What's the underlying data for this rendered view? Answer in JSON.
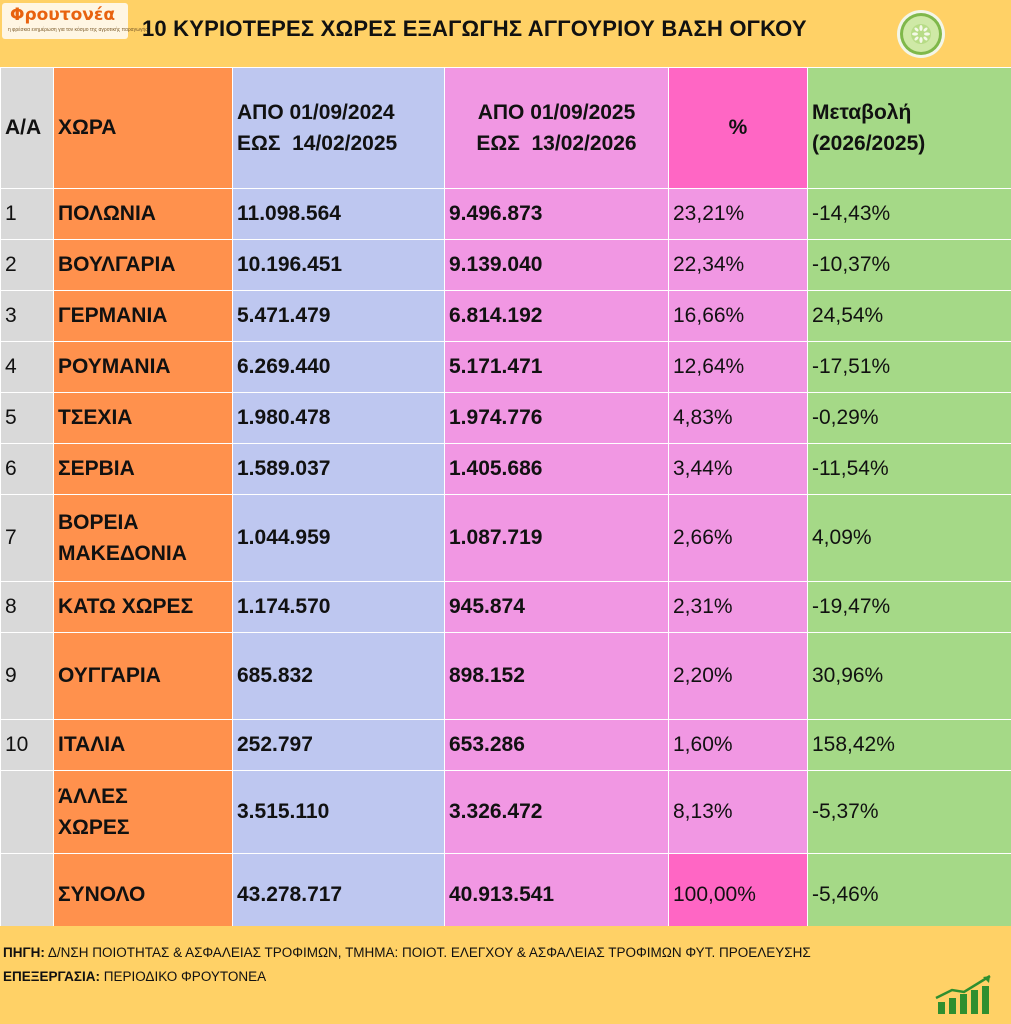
{
  "brand": {
    "name": "Φρουτονέα",
    "tagline": "η φρέσκια ενημέρωση για τον κόσμο της αγροτικής παραγωγής"
  },
  "title": "10 ΚΥΡΙΟΤΕΡΕΣ ΧΩΡΕΣ ΕΞΑΓΩΓΗΣ ΑΓΓΟΥΡΙΟΥ ΒΑΣΗ ΟΓΚΟΥ",
  "table": {
    "headers": {
      "aa": "Α/Α",
      "country": "ΧΩΡΑ",
      "p1_line1": "ΑΠΟ 01/09/2024",
      "p1_line2": "ΕΩΣ  14/02/2025",
      "p2_line1": "ΑΠΟ 01/09/2025",
      "p2_line2": "ΕΩΣ  13/02/2026",
      "pct": "%",
      "change_line1": "Μεταβολή",
      "change_line2": "(2026/2025)"
    },
    "rows": [
      {
        "aa": "1",
        "country": "ΠΟΛΩΝΙΑ",
        "country2": "",
        "p1": "11.098.564",
        "p2": "9.496.873",
        "pct": "23,21%",
        "change": "-14,43%"
      },
      {
        "aa": "2",
        "country": "ΒΟΥΛΓΑΡΙΑ",
        "country2": "",
        "p1": "10.196.451",
        "p2": "9.139.040",
        "pct": "22,34%",
        "change": "-10,37%"
      },
      {
        "aa": "3",
        "country": "ΓΕΡΜΑΝΙΑ",
        "country2": "",
        "p1": "5.471.479",
        "p2": "6.814.192",
        "pct": "16,66%",
        "change": "24,54%"
      },
      {
        "aa": "4",
        "country": "ΡΟΥΜΑΝΙΑ",
        "country2": "",
        "p1": "6.269.440",
        "p2": "5.171.471",
        "pct": "12,64%",
        "change": "-17,51%"
      },
      {
        "aa": "5",
        "country": "ΤΣΕΧΙΑ",
        "country2": "",
        "p1": "1.980.478",
        "p2": "1.974.776",
        "pct": "4,83%",
        "change": "-0,29%"
      },
      {
        "aa": "6",
        "country": "ΣΕΡΒΙΑ",
        "country2": "",
        "p1": "1.589.037",
        "p2": "1.405.686",
        "pct": "3,44%",
        "change": "-11,54%"
      },
      {
        "aa": "7",
        "country": "ΒΟΡΕΙΑ",
        "country2": "ΜΑΚΕΔΟΝΙΑ",
        "p1": "1.044.959",
        "p2": "1.087.719",
        "pct": "2,66%",
        "change": "4,09%"
      },
      {
        "aa": "8",
        "country": "ΚΑΤΩ ΧΩΡΕΣ",
        "country2": "",
        "p1": "1.174.570",
        "p2": "945.874",
        "pct": "2,31%",
        "change": "-19,47%"
      },
      {
        "aa": "9",
        "country": "ΟΥΓΓΑΡΙΑ",
        "country2": "",
        "p1": "685.832",
        "p2": "898.152",
        "pct": "2,20%",
        "change": "30,96%"
      },
      {
        "aa": "10",
        "country": "ΙΤΑΛΙΑ",
        "country2": "",
        "p1": "252.797",
        "p2": "653.286",
        "pct": "1,60%",
        "change": "158,42%"
      },
      {
        "aa": "",
        "country": "ΆΛΛΕΣ",
        "country2": "ΧΩΡΕΣ",
        "p1": "3.515.110",
        "p2": "3.326.472",
        "pct": "8,13%",
        "change": "-5,37%"
      },
      {
        "aa": "",
        "country": "ΣΥΝΟΛΟ",
        "country2": "",
        "p1": "43.278.717",
        "p2": "40.913.541",
        "pct": "100,00%",
        "change": "-5,46%"
      }
    ]
  },
  "footer": {
    "source_label": "ΠΗΓΗ:",
    "source_text": " Δ/ΝΣΗ ΠΟΙΟΤΗΤΑΣ & ΑΣΦΑΛΕΙΑΣ ΤΡΟΦΙΜΩΝ, ΤΜΗΜΑ: ΠΟΙΟΤ. ΕΛΕΓΧΟΥ & ΑΣΦΑΛΕΙΑΣ ΤΡΟΦΙΜΩΝ ΦΥΤ. ΠΡΟΕΛΕΥΣΗΣ",
    "processing_label": "ΕΠΕΞΕΡΓΑΣΙΑ:",
    "processing_text": " ΠΕΡΙΟΔΙΚΟ ΦΡΟΥΤΟΝΕΑ"
  },
  "icons": {
    "logo": "frouto-nea-logo",
    "cucumber": "cucumber-slice-icon",
    "growth": "growth-bars-icon"
  },
  "colors": {
    "background": "#ffd166",
    "country": "#ff914d",
    "period1": "#bec7f0",
    "period2": "#f197e3",
    "pct_header": "#ff66c4",
    "change": "#a5d987",
    "index": "#d9d9d9"
  }
}
